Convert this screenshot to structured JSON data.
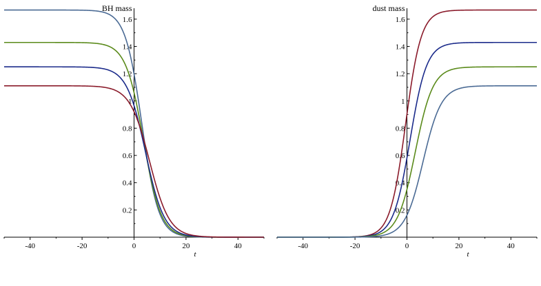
{
  "chart_data": [
    {
      "type": "line",
      "title": "BH mass",
      "xlabel": "t",
      "ylabel": "",
      "xlim": [
        -50,
        50
      ],
      "ylim": [
        0,
        1.68
      ],
      "x_ticks": [
        -40,
        -20,
        0,
        20,
        40
      ],
      "x_tick_labels": [
        "-40",
        "-20",
        "0",
        "20",
        "40"
      ],
      "y_ticks": [
        0.2,
        0.4,
        0.6,
        0.8,
        1,
        1.2,
        1.4,
        1.6
      ],
      "y_tick_labels": [
        "0.2",
        "0.4",
        "0.6",
        "0.8",
        "1",
        "1.2",
        "1.4",
        "1.6"
      ],
      "grid": false,
      "series": [
        {
          "color": "#4a6a94",
          "start_value": 1.667,
          "end_value": 0,
          "midpoint": 3.0,
          "width": 3.2
        },
        {
          "color": "#5a8a1a",
          "start_value": 1.429,
          "end_value": 0,
          "midpoint": 3.6,
          "width": 3.4
        },
        {
          "color": "#1a2a8a",
          "start_value": 1.25,
          "end_value": 0,
          "midpoint": 4.4,
          "width": 3.6
        },
        {
          "color": "#8a1a2a",
          "start_value": 1.111,
          "end_value": 0,
          "midpoint": 6.0,
          "width": 3.8
        }
      ]
    },
    {
      "type": "line",
      "title": "dust mass",
      "xlabel": "t",
      "ylabel": "",
      "xlim": [
        -50,
        50
      ],
      "ylim": [
        0,
        1.68
      ],
      "x_ticks": [
        -40,
        -20,
        0,
        20,
        40
      ],
      "x_tick_labels": [
        "-40",
        "-20",
        "0",
        "20",
        "40"
      ],
      "y_ticks": [
        0.2,
        0.4,
        0.6,
        0.8,
        1,
        1.2,
        1.4,
        1.6
      ],
      "y_tick_labels": [
        "0.2",
        "0.4",
        "0.6",
        "0.8",
        "1",
        "1.2",
        "1.4",
        "1.6"
      ],
      "grid": false,
      "series": [
        {
          "color": "#8a1a2a",
          "start_value": 0,
          "end_value": 1.667,
          "midpoint": -0.5,
          "width": 3.0
        },
        {
          "color": "#1a2a8a",
          "start_value": 0,
          "end_value": 1.429,
          "midpoint": 1.2,
          "width": 3.2
        },
        {
          "color": "#5a8a1a",
          "start_value": 0,
          "end_value": 1.25,
          "midpoint": 3.2,
          "width": 3.4
        },
        {
          "color": "#4a6a94",
          "start_value": 0,
          "end_value": 1.111,
          "midpoint": 6.2,
          "width": 3.5
        }
      ]
    }
  ]
}
